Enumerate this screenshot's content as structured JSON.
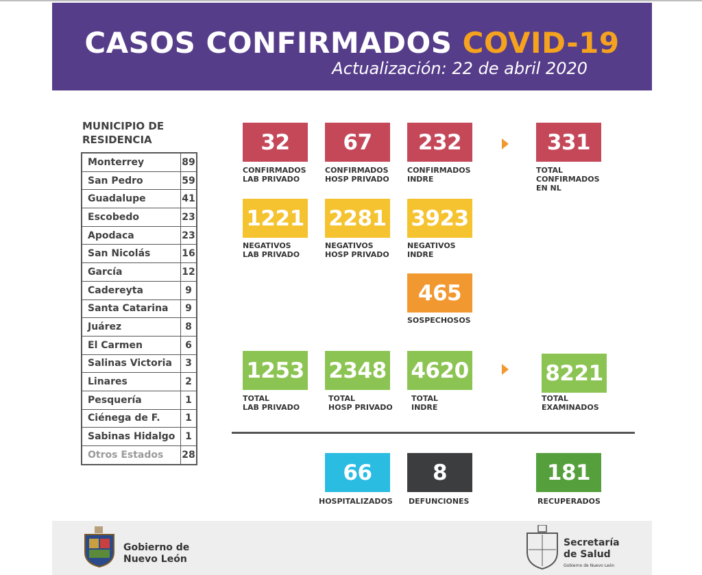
{
  "header": {
    "title_main": "CASOS CONFIRMADOS",
    "title_accent": "COVID-19",
    "update": "Actualización: 22 de abril 2020"
  },
  "municipios": {
    "title": "MUNICIPIO DE\nRESIDENCIA",
    "rows": [
      {
        "name": "Monterrey",
        "value": "89"
      },
      {
        "name": "San Pedro",
        "value": "59"
      },
      {
        "name": "Guadalupe",
        "value": "41"
      },
      {
        "name": "Escobedo",
        "value": "23"
      },
      {
        "name": "Apodaca",
        "value": "23"
      },
      {
        "name": "San Nicolás",
        "value": "16"
      },
      {
        "name": "García",
        "value": "12"
      },
      {
        "name": "Cadereyta",
        "value": "9"
      },
      {
        "name": "Santa Catarina",
        "value": "9"
      },
      {
        "name": "Juárez",
        "value": "8"
      },
      {
        "name": "El Carmen",
        "value": "6"
      },
      {
        "name": "Salinas Victoria",
        "value": "3"
      },
      {
        "name": "Linares",
        "value": "2"
      },
      {
        "name": "Pesquería",
        "value": "1"
      },
      {
        "name": "Ciénega de F.",
        "value": "1"
      },
      {
        "name": "Sabinas Hidalgo",
        "value": "1"
      },
      {
        "name": "Otros Estados",
        "value": "28"
      }
    ]
  },
  "stats": {
    "confirmados_lab_privado": {
      "value": "32",
      "label": "CONFIRMADOS\nLAB PRIVADO"
    },
    "confirmados_hosp_privado": {
      "value": "67",
      "label": "CONFIRMADOS\nHOSP PRIVADO"
    },
    "confirmados_indre": {
      "value": "232",
      "label": "CONFIRMADOS\nINDRE"
    },
    "total_confirmados": {
      "value": "331",
      "label": "TOTAL\nCONFIRMADOS\nEN NL"
    },
    "negativos_lab_privado": {
      "value": "1221",
      "label": "NEGATIVOS\nLAB PRIVADO"
    },
    "negativos_hosp_privado": {
      "value": "2281",
      "label": "NEGATIVOS\nHOSP PRIVADO"
    },
    "negativos_indre": {
      "value": "3923",
      "label": "NEGATIVOS\nINDRE"
    },
    "sospechosos": {
      "value": "465",
      "label": "SOSPECHOSOS"
    },
    "total_lab_privado": {
      "value": "1253",
      "label": "TOTAL\nLAB PRIVADO"
    },
    "total_hosp_privado": {
      "value": "2348",
      "label": "TOTAL\nHOSP PRIVADO"
    },
    "total_indre": {
      "value": "4620",
      "label": "TOTAL\nINDRE"
    },
    "total_examinados": {
      "value": "8221",
      "label": "TOTAL\nEXAMINADOS"
    },
    "hospitalizados": {
      "value": "66",
      "label": "HOSPITALIZADOS"
    },
    "defunciones": {
      "value": "8",
      "label": "DEFUNCIONES"
    },
    "recuperados": {
      "value": "181",
      "label": "RECUPERADOS"
    }
  },
  "footer": {
    "left_org": "Gobierno de\nNuevo León",
    "right_org": "Secretaría\nde Salud",
    "right_sub": "Gobierno de Nuevo León"
  },
  "colors": {
    "header_purple": "#563d8a",
    "accent_orange": "#f5a31f",
    "confirmed_red": "#c54859",
    "negative_yellow": "#f5c330",
    "suspect_orange": "#f29830",
    "total_green": "#8cc453",
    "hospital_cyan": "#2bbce2",
    "death_dark": "#3c3d3f",
    "recovered_green": "#55a03c"
  },
  "icons": [
    "arrow-right-icon",
    "nuevo-leon-coat-of-arms-icon",
    "salud-coat-of-arms-icon"
  ]
}
